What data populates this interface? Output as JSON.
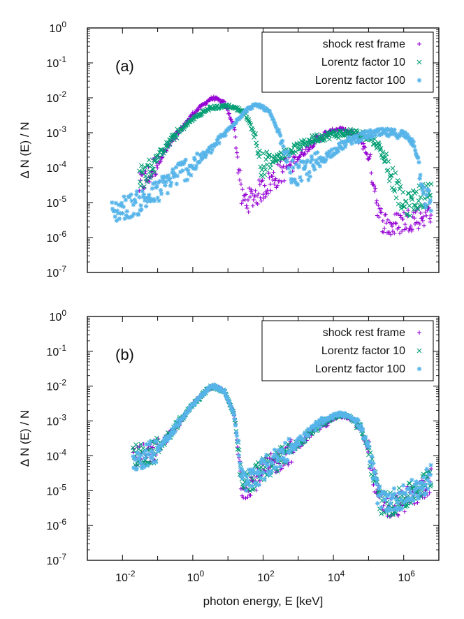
{
  "chart_data": [
    {
      "type": "scatter",
      "panel_label": "(a)",
      "xscale": "log",
      "yscale": "log",
      "xlim": [
        0.001,
        10000000
      ],
      "ylim": [
        1e-07,
        1
      ],
      "xlabel": "",
      "ylabel": "Δ N (E) / N",
      "x_ticks": [
        {
          "value": 0.01,
          "base": "10",
          "exp": "-2"
        },
        {
          "value": 1,
          "base": "10",
          "exp": "0"
        },
        {
          "value": 100,
          "base": "10",
          "exp": "2"
        },
        {
          "value": 10000,
          "base": "10",
          "exp": "4"
        },
        {
          "value": 1000000,
          "base": "10",
          "exp": "6"
        }
      ],
      "show_x_tick_labels": false,
      "y_ticks": [
        {
          "value": 1,
          "base": "10",
          "exp": "0"
        },
        {
          "value": 0.1,
          "base": "10",
          "exp": "-1"
        },
        {
          "value": 0.01,
          "base": "10",
          "exp": "-2"
        },
        {
          "value": 0.001,
          "base": "10",
          "exp": "-3"
        },
        {
          "value": 0.0001,
          "base": "10",
          "exp": "-4"
        },
        {
          "value": 1e-05,
          "base": "10",
          "exp": "-5"
        },
        {
          "value": 1e-06,
          "base": "10",
          "exp": "-6"
        },
        {
          "value": 1e-07,
          "base": "10",
          "exp": "-7"
        }
      ],
      "legend_position": "top-right",
      "series": [
        {
          "name": "shock rest frame",
          "marker": "+",
          "color": "#9400d3",
          "x": [
            0.03,
            0.05,
            0.1,
            0.3,
            1,
            3,
            4,
            8,
            15,
            20,
            25,
            40,
            100,
            300,
            1000,
            3000,
            10000,
            16000,
            30000,
            60000,
            100000,
            150000,
            200000,
            400000,
            1000000,
            3000000,
            6000000
          ],
          "y": [
            3e-05,
            5e-05,
            0.00015,
            0.0007,
            0.0035,
            0.009,
            0.0098,
            0.007,
            0.0015,
            0.0001,
            1.2e-05,
            1.2e-05,
            2.5e-05,
            7e-05,
            0.0002,
            0.0006,
            0.0012,
            0.0013,
            0.001,
            0.0006,
            0.0002,
            3e-05,
            4e-06,
            2e-06,
            3e-06,
            4e-06,
            6e-06
          ]
        },
        {
          "name": "Lorentz factor 10",
          "marker": "x",
          "color": "#009e73",
          "x": [
            0.03,
            0.05,
            0.1,
            0.3,
            1,
            3,
            10,
            30,
            60,
            80,
            100,
            300,
            1000,
            3000,
            10000,
            30000,
            100000,
            200000,
            500000,
            1000000,
            1500000,
            2000000,
            3000000,
            6000000
          ],
          "y": [
            5e-05,
            7e-05,
            0.0002,
            0.0008,
            0.0025,
            0.005,
            0.006,
            0.004,
            0.0008,
            0.00015,
            0.00012,
            0.00022,
            0.0004,
            0.0007,
            0.0009,
            0.001,
            0.0008,
            0.0004,
            5e-05,
            8e-06,
            9e-06,
            1.2e-05,
            1.5e-05,
            2e-05
          ]
        },
        {
          "name": "Lorentz factor 100",
          "marker": "*",
          "color": "#56b4e9",
          "x": [
            0.005,
            0.01,
            0.03,
            0.1,
            0.3,
            1,
            3,
            10,
            30,
            50,
            80,
            150,
            300,
            600,
            1000,
            3000,
            10000,
            30000,
            100000,
            300000,
            1000000,
            2000000,
            3000000,
            4000000,
            6000000
          ],
          "y": [
            5e-06,
            7e-06,
            1e-05,
            2e-05,
            6e-05,
            0.00012,
            0.0003,
            0.0012,
            0.004,
            0.0058,
            0.006,
            0.004,
            0.0008,
            8e-05,
            6e-05,
            0.00012,
            0.0003,
            0.0006,
            0.0009,
            0.001,
            0.0009,
            0.0005,
            8e-05,
            1.5e-05,
            1e-05
          ]
        }
      ]
    },
    {
      "type": "scatter",
      "panel_label": "(b)",
      "xscale": "log",
      "yscale": "log",
      "xlim": [
        0.001,
        10000000
      ],
      "ylim": [
        1e-07,
        1
      ],
      "xlabel": "photon energy, E [keV]",
      "ylabel": "Δ N (E) / N",
      "x_ticks": [
        {
          "value": 0.01,
          "base": "10",
          "exp": "-2"
        },
        {
          "value": 1,
          "base": "10",
          "exp": "0"
        },
        {
          "value": 100,
          "base": "10",
          "exp": "2"
        },
        {
          "value": 10000,
          "base": "10",
          "exp": "4"
        },
        {
          "value": 1000000,
          "base": "10",
          "exp": "6"
        }
      ],
      "show_x_tick_labels": true,
      "y_ticks": [
        {
          "value": 1,
          "base": "10",
          "exp": "0"
        },
        {
          "value": 0.1,
          "base": "10",
          "exp": "-1"
        },
        {
          "value": 0.01,
          "base": "10",
          "exp": "-2"
        },
        {
          "value": 0.001,
          "base": "10",
          "exp": "-3"
        },
        {
          "value": 0.0001,
          "base": "10",
          "exp": "-4"
        },
        {
          "value": 1e-05,
          "base": "10",
          "exp": "-5"
        },
        {
          "value": 1e-06,
          "base": "10",
          "exp": "-6"
        },
        {
          "value": 1e-07,
          "base": "10",
          "exp": "-7"
        }
      ],
      "legend_position": "top-right",
      "series": [
        {
          "name": "shock rest frame",
          "marker": "+",
          "color": "#9400d3",
          "x": [
            0.02,
            0.05,
            0.1,
            0.3,
            1,
            3,
            4,
            8,
            15,
            20,
            25,
            40,
            100,
            300,
            1000,
            3000,
            10000,
            16000,
            30000,
            60000,
            100000,
            150000,
            200000,
            400000,
            1000000,
            3000000,
            6000000
          ],
          "y": [
            0.0001,
            0.0001,
            0.00015,
            0.0006,
            0.003,
            0.009,
            0.0098,
            0.007,
            0.0015,
            0.0001,
            1.2e-05,
            1.5e-05,
            3.5e-05,
            8e-05,
            0.0002,
            0.0006,
            0.0012,
            0.0014,
            0.0012,
            0.0006,
            0.00015,
            2e-05,
            5e-06,
            3e-06,
            5e-06,
            1e-05,
            2e-05
          ]
        },
        {
          "name": "Lorentz factor 10",
          "marker": "x",
          "color": "#009e73",
          "x": [
            0.02,
            0.05,
            0.1,
            0.3,
            1,
            3,
            4,
            8,
            15,
            20,
            25,
            40,
            100,
            300,
            1000,
            3000,
            10000,
            16000,
            30000,
            60000,
            100000,
            150000,
            200000,
            400000,
            1000000,
            3000000,
            6000000
          ],
          "y": [
            0.0001,
            0.0001,
            0.00015,
            0.0006,
            0.003,
            0.009,
            0.0098,
            0.007,
            0.0015,
            0.0001,
            1.5e-05,
            1.8e-05,
            4e-05,
            9e-05,
            0.00022,
            0.00065,
            0.0013,
            0.0015,
            0.0013,
            0.0006,
            0.00015,
            2e-05,
            5e-06,
            4e-06,
            6e-06,
            1.2e-05,
            2.5e-05
          ]
        },
        {
          "name": "Lorentz factor 100",
          "marker": "*",
          "color": "#56b4e9",
          "x": [
            0.02,
            0.05,
            0.1,
            0.3,
            1,
            3,
            4,
            8,
            15,
            20,
            25,
            40,
            100,
            300,
            1000,
            3000,
            10000,
            16000,
            30000,
            60000,
            100000,
            150000,
            200000,
            400000,
            1000000,
            3000000,
            6000000
          ],
          "y": [
            8e-05,
            0.0001,
            0.00016,
            0.0006,
            0.003,
            0.009,
            0.0099,
            0.007,
            0.0016,
            0.00012,
            2e-05,
            2e-05,
            4e-05,
            0.0001,
            0.00025,
            0.0007,
            0.0014,
            0.0016,
            0.0014,
            0.0007,
            0.00015,
            2e-05,
            6e-06,
            5e-06,
            7e-06,
            1.2e-05,
            2.5e-05
          ]
        }
      ]
    }
  ]
}
